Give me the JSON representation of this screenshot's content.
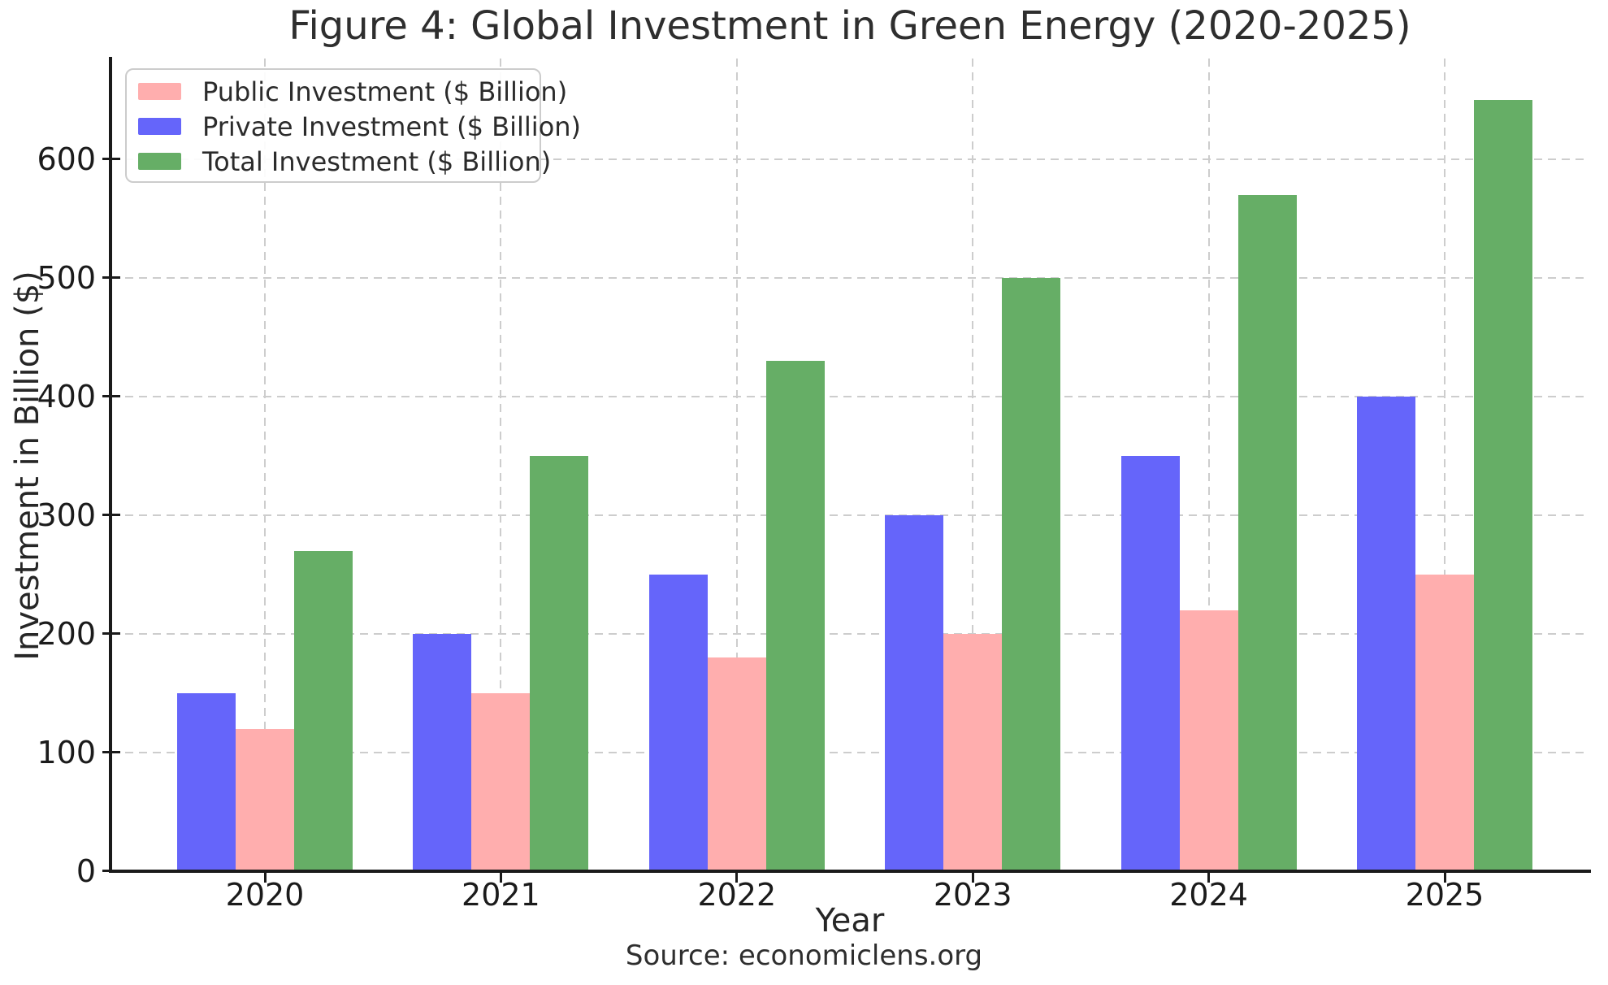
{
  "source": "Source: economiclens.org",
  "chart_data": {
    "type": "bar",
    "title": "Figure 4: Global Investment in Green Energy (2020-2025)",
    "xlabel": "Year",
    "ylabel": "Investment in Billion ($)",
    "categories": [
      "2020",
      "2021",
      "2022",
      "2023",
      "2024",
      "2025"
    ],
    "series": [
      {
        "name": "Public Investment ($ Billion)",
        "color": "#ffaeae",
        "slot": 1,
        "values": [
          120,
          150,
          180,
          200,
          220,
          250
        ]
      },
      {
        "name": "Private Investment ($ Billion)",
        "color": "#6565fa",
        "slot": 0,
        "values": [
          150,
          200,
          250,
          300,
          350,
          400
        ]
      },
      {
        "name": "Total Investment ($ Billion)",
        "color": "#66ae66",
        "slot": 2,
        "values": [
          270,
          350,
          430,
          500,
          570,
          650
        ]
      }
    ],
    "yticks": [
      0,
      100,
      200,
      300,
      400,
      500,
      600
    ],
    "ylim": [
      0,
      685
    ],
    "grid": true,
    "grid_style": "dashed",
    "grid_color": "#cdcdcd",
    "axis_color": "#1a1a1a",
    "legend_position": "upper left"
  }
}
